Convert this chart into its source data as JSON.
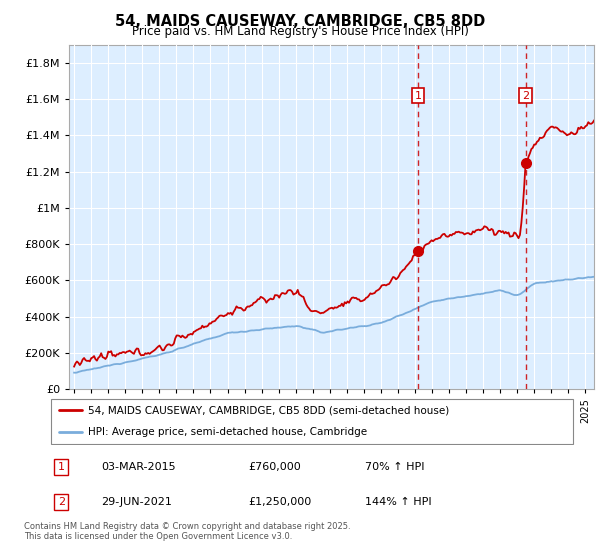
{
  "title": "54, MAIDS CAUSEWAY, CAMBRIDGE, CB5 8DD",
  "subtitle": "Price paid vs. HM Land Registry's House Price Index (HPI)",
  "legend_line1": "54, MAIDS CAUSEWAY, CAMBRIDGE, CB5 8DD (semi-detached house)",
  "legend_line2": "HPI: Average price, semi-detached house, Cambridge",
  "footer": "Contains HM Land Registry data © Crown copyright and database right 2025.\nThis data is licensed under the Open Government Licence v3.0.",
  "sale1_label": "1",
  "sale1_date": "03-MAR-2015",
  "sale1_price": "£760,000",
  "sale1_hpi": "70% ↑ HPI",
  "sale1_year": 2015.17,
  "sale1_value": 760000,
  "sale2_label": "2",
  "sale2_date": "29-JUN-2021",
  "sale2_price": "£1,250,000",
  "sale2_hpi": "144% ↑ HPI",
  "sale2_year": 2021.5,
  "sale2_value": 1250000,
  "red_color": "#cc0000",
  "blue_color": "#7aaddc",
  "bg_color": "#ddeeff",
  "grid_color": "#ffffff",
  "ylim": [
    0,
    1900000
  ],
  "xlim": [
    1994.7,
    2025.5
  ],
  "yticks": [
    0,
    200000,
    400000,
    600000,
    800000,
    1000000,
    1200000,
    1400000,
    1600000,
    1800000
  ],
  "ytick_labels": [
    "£0",
    "£200K",
    "£400K",
    "£600K",
    "£800K",
    "£1M",
    "£1.2M",
    "£1.4M",
    "£1.6M",
    "£1.8M"
  ]
}
